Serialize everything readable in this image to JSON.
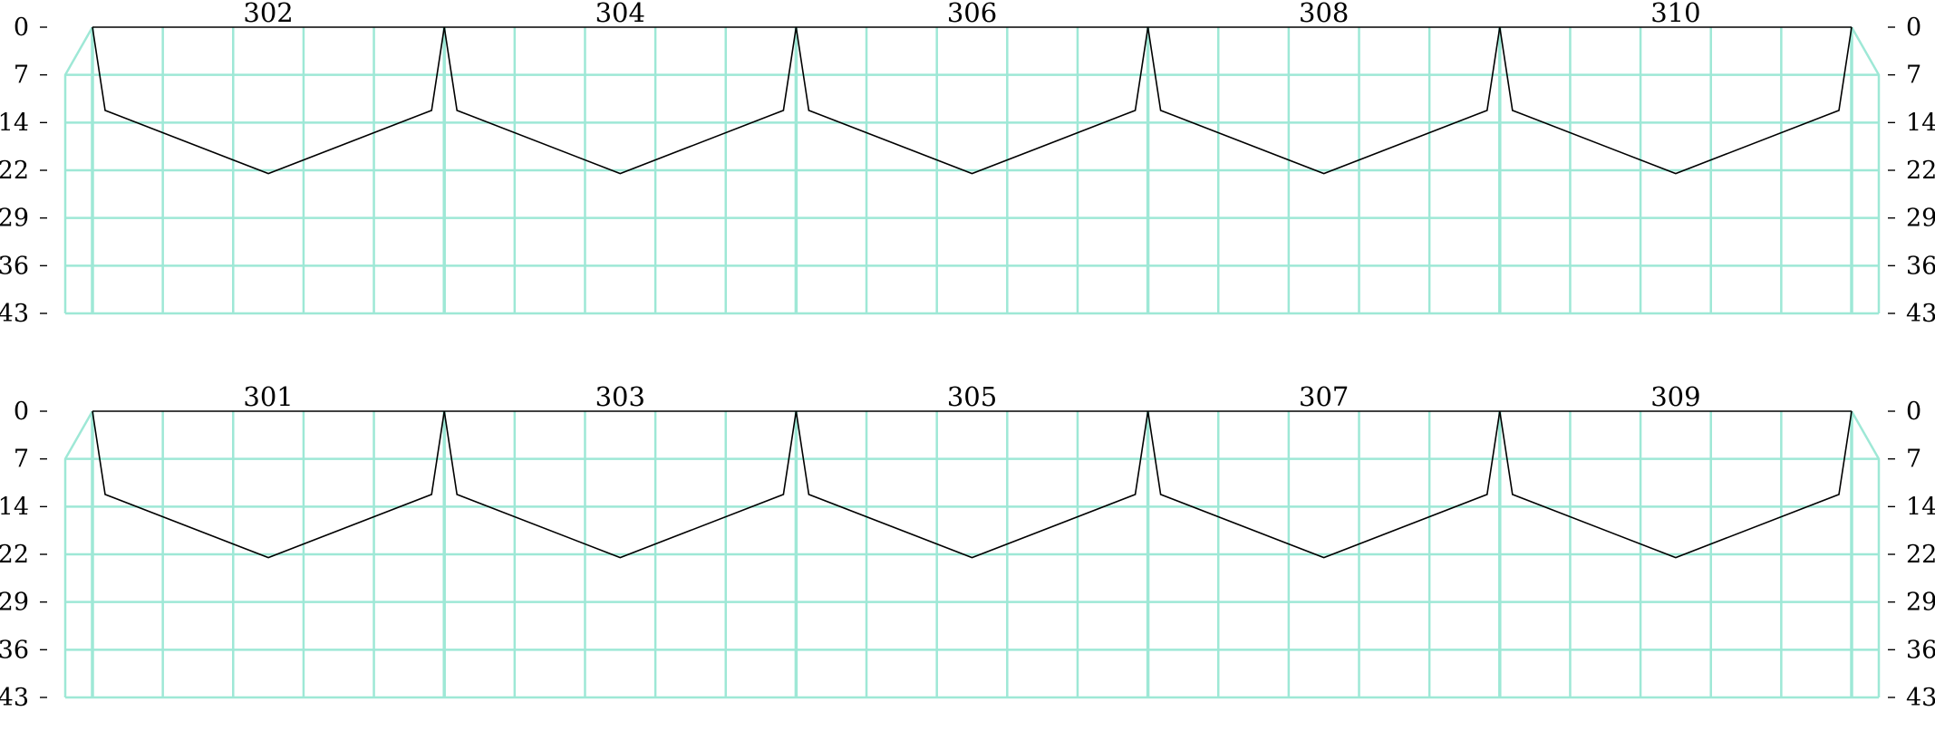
{
  "colors": {
    "grid": "#9ee8d6",
    "profile": "#000000",
    "background": "#ffffff"
  },
  "depth_ticks": [
    "0",
    "7",
    "14",
    "22",
    "29",
    "36",
    "43"
  ],
  "depth_max": 43,
  "rows": [
    {
      "row": "top",
      "bays": [
        "302",
        "304",
        "306",
        "308",
        "310"
      ]
    },
    {
      "row": "bottom",
      "bays": [
        "301",
        "303",
        "305",
        "307",
        "309"
      ]
    }
  ],
  "profile_shape": {
    "description_points_depth": [
      0,
      12.5,
      22
    ]
  }
}
